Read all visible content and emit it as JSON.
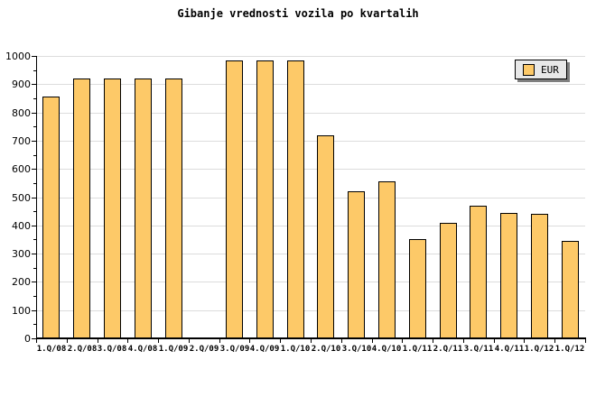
{
  "title": "Gibanje vrednosti vozila po kvartalih",
  "legend": {
    "label": "EUR"
  },
  "chart_data": {
    "type": "bar",
    "title": "Gibanje vrednosti vozila po kvartalih",
    "categories": [
      "1.Q/08",
      "2.Q/08",
      "3.Q/08",
      "4.Q/08",
      "1.Q/09",
      "2.Q/09",
      "3.Q/09",
      "4.Q/09",
      "1.Q/10",
      "2.Q/10",
      "3.Q/10",
      "4.Q/10",
      "1.Q/11",
      "2.Q/11",
      "3.Q/11",
      "4.Q/11",
      "1.Q/12",
      "1.Q/12"
    ],
    "series": [
      {
        "name": "EUR",
        "values": [
          855,
          920,
          920,
          920,
          920,
          null,
          985,
          985,
          985,
          720,
          520,
          555,
          350,
          410,
          470,
          445,
          440,
          345
        ]
      }
    ],
    "ylim": [
      0,
      1000
    ],
    "y_tick_step": 100,
    "y_minor_tick_step": 50,
    "grid": "horizontal",
    "legend_position": "top-right",
    "colors": {
      "bar_fill": "#FDC968",
      "bar_border": "#000000",
      "gridline": "#DCDCDC",
      "axis": "#000000",
      "legend_bg": "#E8E8E8",
      "legend_border": "#000000",
      "legend_shadow": "#7F7F7F",
      "background": "#FFFFFF",
      "text": "#000000"
    }
  }
}
